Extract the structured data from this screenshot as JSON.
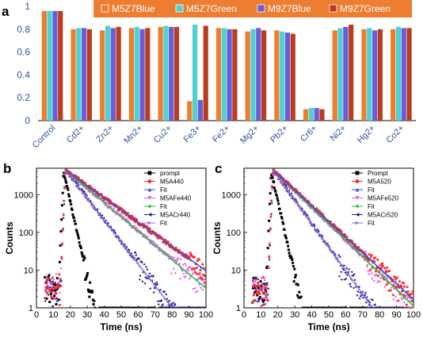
{
  "chart_data": [
    {
      "panel": "a",
      "type": "bar",
      "categories": [
        "Control",
        "Cd2+",
        "Zn2+",
        "Mn2+",
        "Cu2+",
        "Fe3+",
        "Fe2+",
        "Mg2+",
        "Pb2+",
        "Cr6+",
        "Ni2+",
        "Hg2+",
        "Co2+"
      ],
      "series": [
        {
          "name": "M5Z7Blue",
          "color": "#ed7d31",
          "values": [
            0.96,
            0.8,
            0.79,
            0.81,
            0.82,
            0.17,
            0.81,
            0.78,
            0.79,
            0.1,
            0.79,
            0.8,
            0.8
          ]
        },
        {
          "name": "M5Z7Green",
          "color": "#4fd1d1",
          "values": [
            0.96,
            0.81,
            0.83,
            0.82,
            0.83,
            0.84,
            0.81,
            0.8,
            0.78,
            0.11,
            0.81,
            0.81,
            0.82
          ]
        },
        {
          "name": "M9Z7Blue",
          "color": "#6b5bd6",
          "values": [
            0.96,
            0.81,
            0.81,
            0.8,
            0.82,
            0.18,
            0.8,
            0.81,
            0.77,
            0.11,
            0.82,
            0.79,
            0.81
          ]
        },
        {
          "name": "M9Z7Green",
          "color": "#b83c1f",
          "values": [
            0.96,
            0.8,
            0.82,
            0.81,
            0.82,
            0.83,
            0.8,
            0.79,
            0.76,
            0.1,
            0.84,
            0.8,
            0.81
          ]
        }
      ],
      "yticks": [
        "0",
        "0.2",
        "0.4",
        "0.6",
        "0.8",
        "1"
      ],
      "ylim": [
        0,
        1
      ],
      "legend_position": "top",
      "legend_background": "#ed7d31"
    },
    {
      "panel": "b",
      "type": "scatter",
      "log_y": true,
      "xlabel": "Time (ns)",
      "ylabel": "Counts",
      "xlim": [
        0,
        100
      ],
      "ylim": [
        1,
        5000
      ],
      "xticks": [
        "0",
        "10",
        "20",
        "30",
        "40",
        "50",
        "60",
        "70",
        "80",
        "90",
        "100"
      ],
      "yticks": [
        "1",
        "10",
        "100",
        "1000"
      ],
      "legend_position": "top-right",
      "series": [
        {
          "name": "prompt",
          "color": "#000000",
          "marker": "square",
          "peak": 16,
          "amp": 4000,
          "tau": 2.2,
          "noise_end": 100
        },
        {
          "name": "M5A440",
          "color": "#ff2b2b",
          "marker": "circle",
          "peak": 17,
          "amp": 4500,
          "tau": 13.5,
          "noise_end": 100
        },
        {
          "name": "Fit",
          "color": "#3a4fd8",
          "marker": "triangle-up",
          "peak": 17,
          "amp": 4500,
          "tau": 13.5,
          "fit": true
        },
        {
          "name": "M5AFe440",
          "color": "#e060e0",
          "marker": "triangle-down",
          "peak": 17,
          "amp": 4500,
          "tau": 11.5,
          "noise_end": 100
        },
        {
          "name": "Fit",
          "color": "#2fbf4a",
          "marker": "diamond",
          "peak": 17,
          "amp": 4500,
          "tau": 11.5,
          "fit": true
        },
        {
          "name": "M5ACr440",
          "color": "#1f1f9a",
          "marker": "triangle-left",
          "peak": 17,
          "amp": 4500,
          "tau": 7.5,
          "noise_end": 100
        },
        {
          "name": "Fit",
          "color": "#9a6fd8",
          "marker": "triangle-right",
          "peak": 17,
          "amp": 4500,
          "tau": 7.5,
          "fit": true
        }
      ]
    },
    {
      "panel": "c",
      "type": "scatter",
      "log_y": true,
      "xlabel": "Time (ns)",
      "ylabel": "Counts",
      "xlim": [
        0,
        100
      ],
      "ylim": [
        1,
        5000
      ],
      "xticks": [
        "0",
        "10",
        "20",
        "30",
        "40",
        "50",
        "60",
        "70",
        "80",
        "90",
        "100"
      ],
      "yticks": [
        "1",
        "10",
        "100",
        "1000"
      ],
      "legend_position": "top-right",
      "series": [
        {
          "name": "Prompt",
          "color": "#000000",
          "marker": "square",
          "peak": 16,
          "amp": 4000,
          "tau": 2.2,
          "noise_end": 100
        },
        {
          "name": "M5A520",
          "color": "#ff2b2b",
          "marker": "circle",
          "peak": 17,
          "amp": 4500,
          "tau": 10.5,
          "noise_end": 100
        },
        {
          "name": "Fit",
          "color": "#3a4fd8",
          "marker": "triangle-up",
          "peak": 17,
          "amp": 4500,
          "tau": 10.5,
          "fit": true
        },
        {
          "name": "M5AFe520",
          "color": "#e060e0",
          "marker": "triangle-down",
          "peak": 17,
          "amp": 4500,
          "tau": 10.0,
          "noise_end": 100
        },
        {
          "name": "Fit",
          "color": "#2fbf4a",
          "marker": "diamond",
          "peak": 17,
          "amp": 4500,
          "tau": 10.0,
          "fit": true
        },
        {
          "name": "M5ACr520",
          "color": "#1f1f9a",
          "marker": "triangle-left",
          "peak": 17,
          "amp": 4500,
          "tau": 7.0,
          "noise_end": 100
        },
        {
          "name": "Fit",
          "color": "#9a6fd8",
          "marker": "triangle-right",
          "peak": 17,
          "amp": 4500,
          "tau": 7.0,
          "fit": true
        }
      ]
    }
  ],
  "panels": {
    "a_letter": "a",
    "b_letter": "b",
    "c_letter": "c"
  }
}
